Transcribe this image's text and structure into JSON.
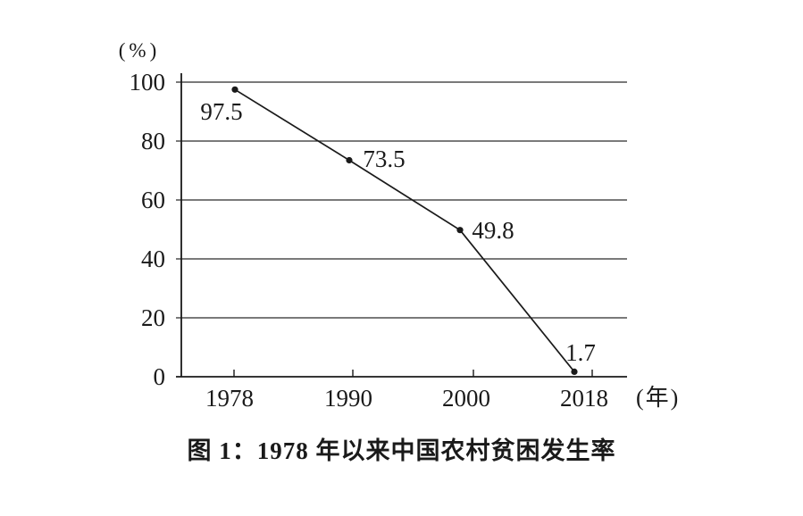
{
  "chart_data": {
    "type": "line",
    "title": "图 1：1978 年以来中国农村贫困发生率",
    "ylabel": "(%)",
    "xlabel": "(年)",
    "categories": [
      "1978",
      "1990",
      "2000",
      "2018"
    ],
    "values": [
      97.5,
      73.5,
      49.8,
      1.7
    ],
    "point_labels": [
      "97.5",
      "73.5",
      "49.8",
      "1.7"
    ],
    "yticks": [
      0,
      20,
      40,
      60,
      80,
      100
    ],
    "ylim": [
      0,
      100
    ],
    "grid": true,
    "legend": false,
    "line_color": "#1a1a1a",
    "grid_color": "#2a2a2a",
    "text_color": "#1a1a1a",
    "background": "#ffffff"
  }
}
